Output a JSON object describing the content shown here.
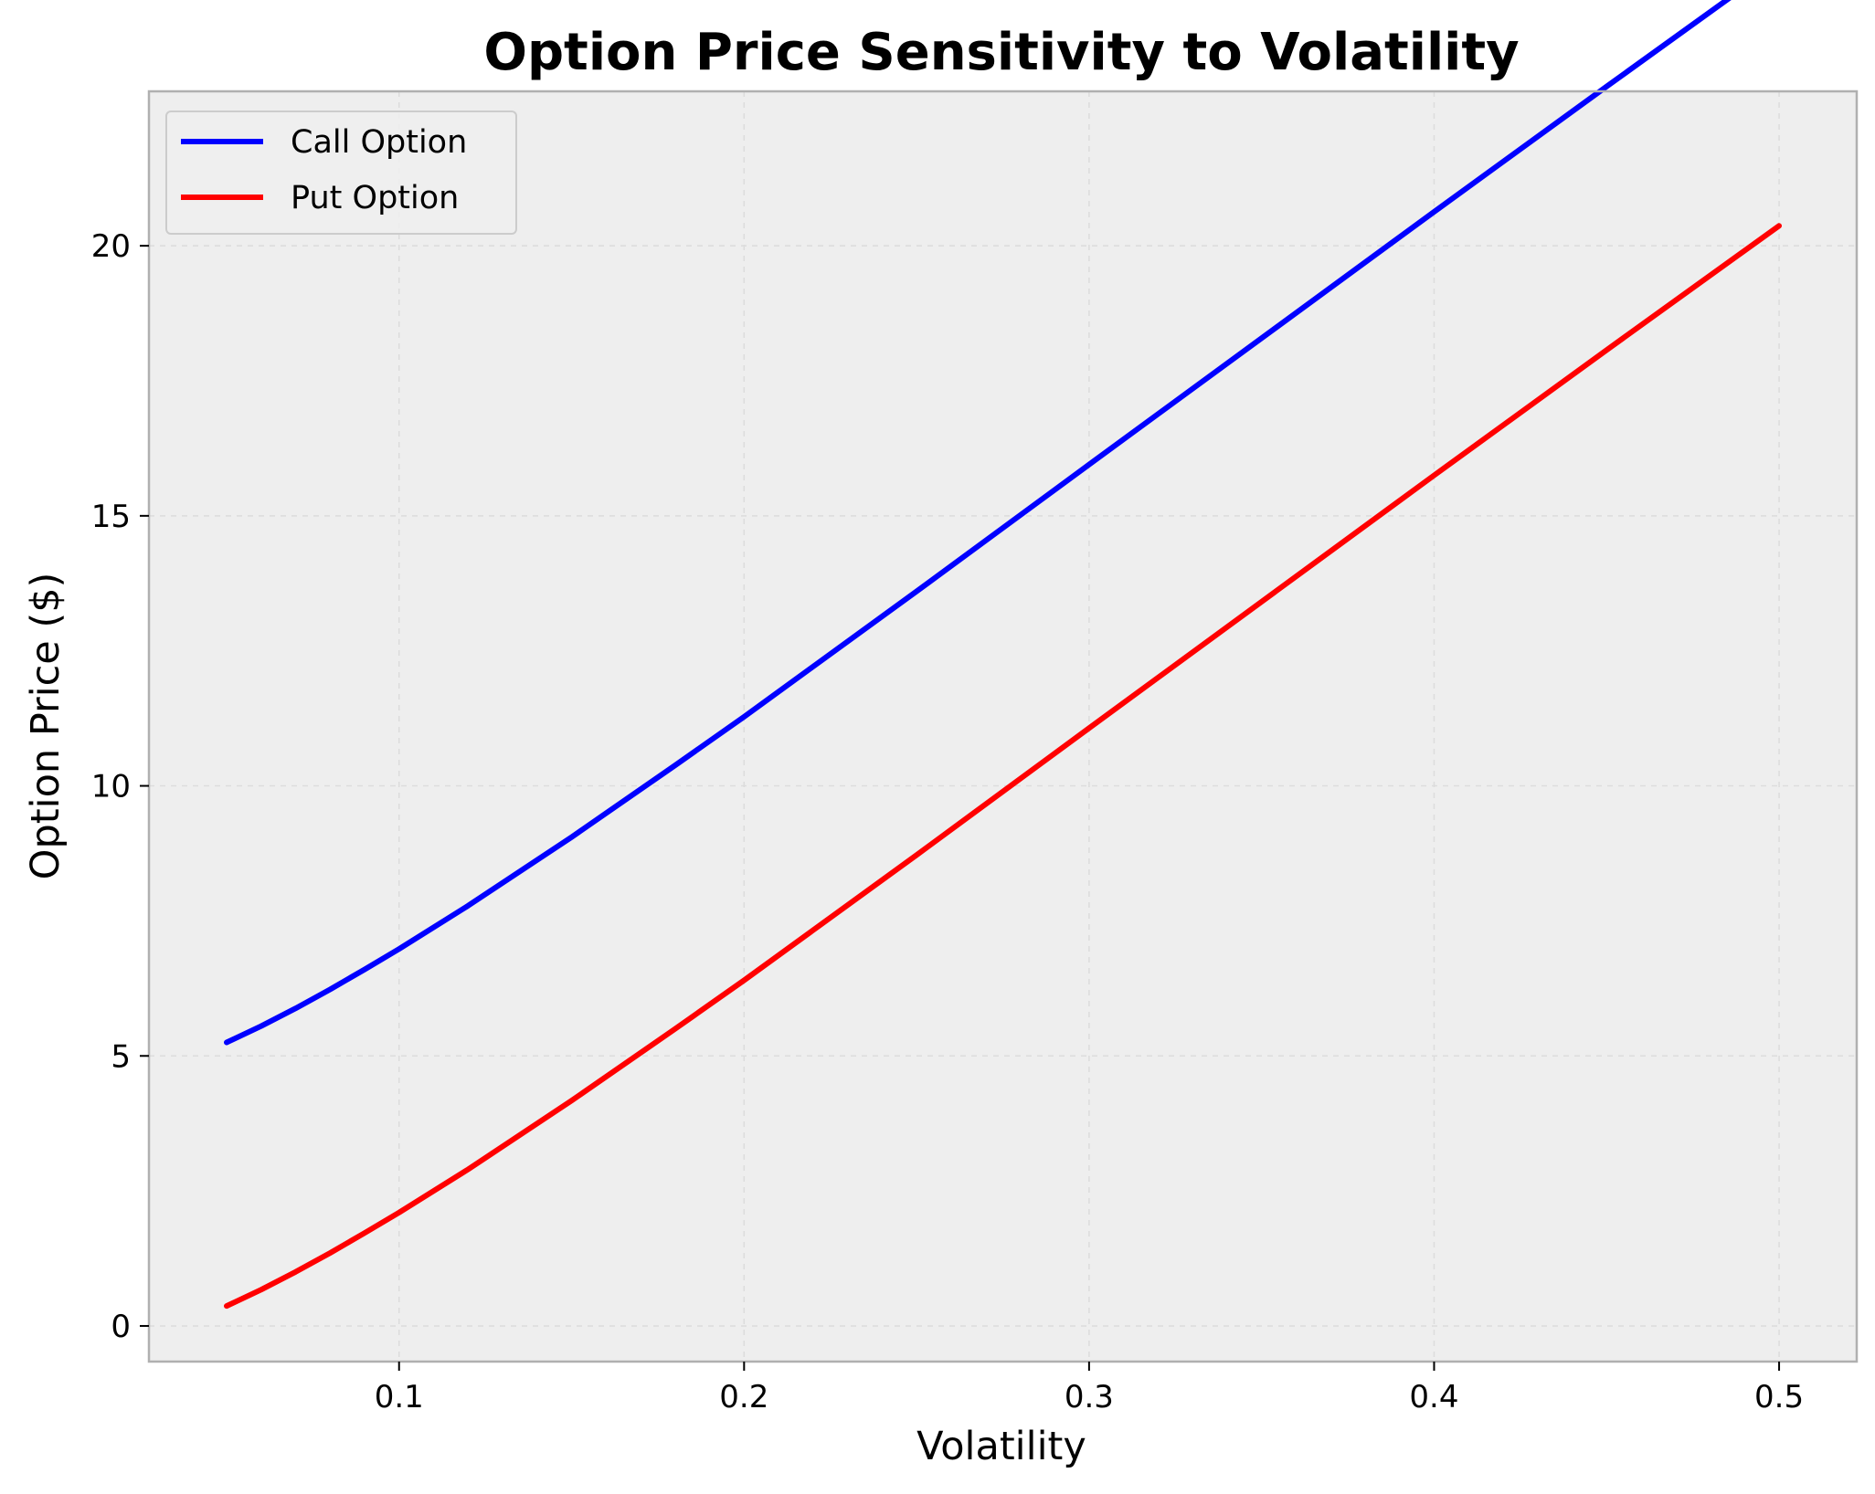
{
  "chart_data": {
    "type": "line",
    "title": "Option Price Sensitivity to Volatility",
    "xlabel": "Volatility",
    "ylabel": "Option Price ($)",
    "xlim": [
      0.0275,
      0.5225
    ],
    "ylim": [
      -0.66,
      22.86
    ],
    "xticks": [
      0.1,
      0.2,
      0.3,
      0.4,
      0.5
    ],
    "xtick_labels": [
      "0.1",
      "0.2",
      "0.3",
      "0.4",
      "0.5"
    ],
    "yticks": [
      0,
      5,
      10,
      15,
      20
    ],
    "ytick_labels": [
      "0",
      "5",
      "10",
      "15",
      "20"
    ],
    "grid": true,
    "legend_position": "top-left",
    "x": [
      0.05,
      0.06,
      0.07,
      0.08,
      0.09,
      0.1,
      0.12,
      0.15,
      0.18,
      0.2,
      0.25,
      0.3,
      0.35,
      0.4,
      0.45,
      0.5
    ],
    "series": [
      {
        "name": "Call Option",
        "color": "#0000ff",
        "values": [
          5.25,
          5.55,
          5.88,
          6.23,
          6.6,
          6.98,
          7.78,
          9.05,
          10.38,
          11.28,
          13.6,
          15.95,
          18.29,
          20.63,
          22.95,
          25.25
        ]
      },
      {
        "name": "Put Option",
        "color": "#ff0000",
        "values": [
          0.37,
          0.67,
          1.0,
          1.35,
          1.72,
          2.1,
          2.9,
          4.17,
          5.5,
          6.4,
          8.72,
          11.07,
          13.41,
          15.75,
          18.07,
          20.37
        ]
      }
    ]
  },
  "colors": {
    "plot_background": "#eeeeee",
    "grid": "#dcdcdc",
    "frame": "#b0b0b0"
  }
}
